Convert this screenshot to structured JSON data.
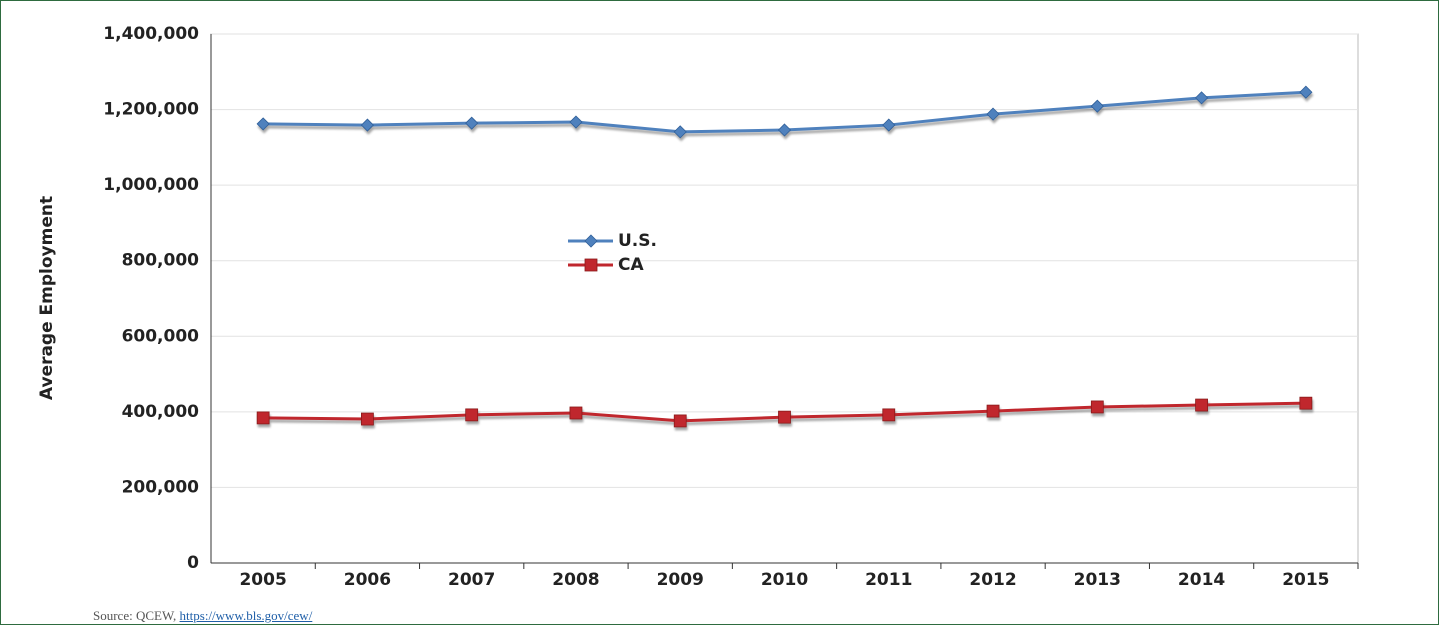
{
  "chart_data": {
    "type": "line",
    "y_label": "Average Employment",
    "categories": [
      "2005",
      "2006",
      "2007",
      "2008",
      "2009",
      "2010",
      "2011",
      "2012",
      "2013",
      "2014",
      "2015"
    ],
    "series": [
      {
        "name": "U.S.",
        "color": "#4f81bd",
        "marker": "diamond",
        "values": [
          1162000,
          1159000,
          1164000,
          1167000,
          1141000,
          1146000,
          1159000,
          1188000,
          1209000,
          1231000,
          1246000
        ]
      },
      {
        "name": "CA",
        "color": "#c0272d",
        "marker": "square",
        "values": [
          384000,
          381000,
          392000,
          397000,
          376000,
          386000,
          392000,
          402000,
          413000,
          418000,
          423000
        ]
      }
    ],
    "ylim": [
      0,
      1400000
    ],
    "yticks": [
      0,
      {
        "value": 200000,
        "label": "200,000"
      },
      {
        "value": 400000,
        "label": "400,000"
      },
      {
        "value": 600000,
        "label": "600,000"
      },
      {
        "value": 800000,
        "label": "800,000"
      },
      {
        "value": 1000000,
        "label": "1,000,000"
      },
      {
        "value": 1200000,
        "label": "1,200,000"
      },
      {
        "value": 1400000,
        "label": "1,400,000"
      }
    ],
    "grid": true,
    "source": "Source: QCEW,",
    "source_link": "https://www.bls.gov/cew/"
  }
}
